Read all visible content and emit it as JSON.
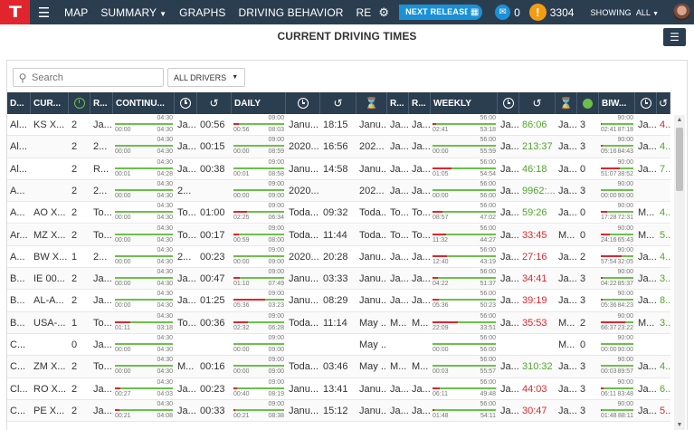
{
  "nav": {
    "logo": "T",
    "items": [
      {
        "label": "MAP"
      },
      {
        "label": "SUMMARY",
        "dropdown": true
      },
      {
        "label": "GRAPHS"
      },
      {
        "label": "DRIVING BEHAVIOR"
      },
      {
        "label": "RE"
      }
    ],
    "next_release": "NEXT RELEASE",
    "message_count": "0",
    "alert_count": "3304",
    "showing_label": "SHOWING",
    "showing_value": "ALL"
  },
  "page": {
    "title": "CURRENT DRIVING TIMES"
  },
  "filters": {
    "search_placeholder": "Search",
    "drivers_select": "ALL DRIVERS"
  },
  "colors": {
    "nav_bg": "#2b3e50",
    "brand_red": "#e0262c",
    "accent_blue": "#1a91d8",
    "ok_green": "#4fa62a",
    "alert_red": "#e0262c"
  },
  "columns": [
    {
      "label": "D..."
    },
    {
      "label": "CUR..."
    },
    {
      "icon": "green-clock-icon"
    },
    {
      "label": "R..."
    },
    {
      "label": "CONTINU..."
    },
    {
      "icon": "clock-icon"
    },
    {
      "icon": "history-icon"
    },
    {
      "label": "DAILY"
    },
    {
      "icon": "clock-icon"
    },
    {
      "icon": "history-icon"
    },
    {
      "icon": "hourglass-icon"
    },
    {
      "label": "R..."
    },
    {
      "label": "R..."
    },
    {
      "label": "WEEKLY"
    },
    {
      "icon": "clock-icon"
    },
    {
      "icon": "history-icon"
    },
    {
      "icon": "hourglass-icon"
    },
    {
      "icon": "green-dot-icon"
    },
    {
      "label": "BIW..."
    },
    {
      "icon": "clock-icon"
    },
    {
      "icon": "history-icon"
    }
  ],
  "rows": [
    {
      "c": [
        "Al...",
        "KS X...",
        "2",
        "Ja...",
        "",
        "Ja...",
        "00:56",
        "",
        "Janu...",
        "18:15",
        "Janu...",
        "Ja...",
        "Ja...",
        "",
        "Ja...",
        "86:06",
        "Ja...",
        "3",
        "",
        "Ja...",
        "4..."
      ],
      "bars": {
        "cont": [
          "04:30",
          "00:00",
          "04:30",
          0
        ],
        "daily": [
          "09:00",
          "00:56",
          "08:03",
          0.1
        ],
        "weekly": [
          "56:00",
          "02:41",
          "53:18",
          0.05
        ],
        "biw": [
          "90:00",
          "02:41",
          "87:18",
          0.03
        ]
      },
      "tone": {
        "15": "green",
        "20": "red"
      }
    },
    {
      "c": [
        "Al...",
        "",
        "2",
        "2...",
        "",
        "Ja...",
        "00:15",
        "",
        "2020...",
        "16:56",
        "202...",
        "Ja...",
        "Ja...",
        "",
        "Ja...",
        "213:37",
        "Ja...",
        "3",
        "",
        "Ja...",
        "4..."
      ],
      "bars": {
        "cont": [
          "04:30",
          "00:00",
          "04:30",
          0
        ],
        "daily": [
          "09:00",
          "00:00",
          "08:59",
          0
        ],
        "weekly": [
          "56:00",
          "00:00",
          "55:59",
          0
        ],
        "biw": [
          "90:00",
          "05:16",
          "84:43",
          0.06
        ]
      },
      "tone": {
        "15": "green",
        "20": "green"
      }
    },
    {
      "c": [
        "Al...",
        "",
        "2",
        "R...",
        "",
        "Ja...",
        "00:38",
        "",
        "Janu...",
        "14:58",
        "Janu...",
        "Ja...",
        "Ja...",
        "",
        "Ja...",
        "46:18",
        "Ja...",
        "0",
        "",
        "Ja...",
        "7..."
      ],
      "bars": {
        "cont": [
          "04:30",
          "00:01",
          "04:28",
          0
        ],
        "daily": [
          "09:00",
          "00:01",
          "08:58",
          0
        ],
        "weekly": [
          "56:00",
          "01:05",
          "54:54",
          0.3
        ],
        "biw": [
          "90:00",
          "51:07",
          "38:52",
          0.57
        ]
      },
      "tone": {
        "15": "green",
        "20": "green"
      }
    },
    {
      "c": [
        "A...",
        "",
        "2",
        "2...",
        "",
        "2...",
        "",
        "",
        "2020...",
        "",
        "202...",
        "Ja...",
        "Ja...",
        "",
        "Ja...",
        "9962:...",
        "Ja...",
        "3",
        "",
        "",
        ""
      ],
      "bars": {
        "cont": [
          "04:30",
          "00:00",
          "04:30",
          0
        ],
        "daily": [
          "09:00",
          "00:00",
          "09:00",
          0
        ],
        "weekly": [
          "56:00",
          "00:00",
          "56:00",
          0
        ],
        "biw": [
          "90:00",
          "00:00",
          "90:00",
          0
        ]
      },
      "tone": {
        "15": "green"
      }
    },
    {
      "c": [
        "A...",
        "AO X...",
        "2",
        "To...",
        "",
        "To...",
        "01:00",
        "",
        "Toda...",
        "09:32",
        "Toda...",
        "To...",
        "To...",
        "",
        "Ja...",
        "59:26",
        "Ja...",
        "0",
        "",
        "M...",
        "4..."
      ],
      "bars": {
        "cont": [
          "04:30",
          "00:00",
          "04:30",
          0
        ],
        "daily": [
          "09:00",
          "02:25",
          "06:34",
          0.27
        ],
        "weekly": [
          "56:00",
          "08:57",
          "47:02",
          0.16
        ],
        "biw": [
          "90:00",
          "17:28",
          "72:31",
          0.19
        ]
      },
      "tone": {
        "15": "green",
        "20": "green"
      }
    },
    {
      "c": [
        "Ar...",
        "MZ X...",
        "2",
        "To...",
        "",
        "To...",
        "00:17",
        "",
        "Toda...",
        "11:44",
        "Toda...",
        "To...",
        "To...",
        "",
        "Ja...",
        "33:45",
        "M...",
        "0",
        "",
        "M...",
        "5..."
      ],
      "bars": {
        "cont": [
          "04:30",
          "00:00",
          "04:30",
          0
        ],
        "daily": [
          "09:00",
          "00:59",
          "08:00",
          0.11
        ],
        "weekly": [
          "56:00",
          "11:32",
          "44:27",
          0.21
        ],
        "biw": [
          "90:00",
          "24:16",
          "65:43",
          0.27
        ]
      },
      "tone": {
        "15": "red",
        "20": "green"
      }
    },
    {
      "c": [
        "A...",
        "BW X...",
        "1",
        "2...",
        "",
        "2...",
        "00:23",
        "",
        "2020...",
        "20:28",
        "Janu...",
        "Ja...",
        "Ja...",
        "",
        "Ja...",
        "27:16",
        "Ja...",
        "2",
        "",
        "Ja...",
        "4..."
      ],
      "bars": {
        "cont": [
          "04:30",
          "00:00",
          "04:30",
          0
        ],
        "daily": [
          "09:00",
          "00:00",
          "09:00",
          0
        ],
        "weekly": [
          "56:00",
          "12:40",
          "43:19",
          0.23
        ],
        "biw": [
          "90:00",
          "57:54",
          "32:05",
          0.64
        ]
      },
      "tone": {
        "15": "red",
        "20": "green"
      }
    },
    {
      "c": [
        "B...",
        "IE 00...",
        "2",
        "Ja...",
        "",
        "Ja...",
        "00:47",
        "",
        "Janu...",
        "03:33",
        "Janu...",
        "Ja...",
        "Ja...",
        "",
        "Ja...",
        "34:41",
        "Ja...",
        "3",
        "",
        "Ja...",
        "3..."
      ],
      "bars": {
        "cont": [
          "04:30",
          "00:00",
          "04:30",
          0
        ],
        "daily": [
          "09:00",
          "01:10",
          "07:49",
          0.13
        ],
        "weekly": [
          "56:00",
          "04:22",
          "51:37",
          0.08
        ],
        "biw": [
          "90:00",
          "04:22",
          "85:37",
          0.05
        ]
      },
      "tone": {
        "15": "red",
        "20": "green"
      }
    },
    {
      "c": [
        "B...",
        "AL-A...",
        "2",
        "Ja...",
        "",
        "Ja...",
        "01:25",
        "",
        "Janu...",
        "08:29",
        "Janu...",
        "Ja...",
        "Ja...",
        "",
        "Ja...",
        "39:19",
        "Ja...",
        "3",
        "",
        "Ja...",
        "8..."
      ],
      "bars": {
        "cont": [
          "04:30",
          "00:00",
          "04:30",
          0
        ],
        "daily": [
          "09:00",
          "05:36",
          "03:23",
          0.62
        ],
        "weekly": [
          "56:00",
          "05:36",
          "50:23",
          0.1
        ],
        "biw": [
          "90:00",
          "05:36",
          "84:23",
          0.06
        ]
      },
      "tone": {
        "15": "red",
        "20": "green"
      }
    },
    {
      "c": [
        "B...",
        "USA-...",
        "1",
        "To...",
        "",
        "To...",
        "00:36",
        "",
        "Toda...",
        "11:14",
        "May ...",
        "M...",
        "M...",
        "",
        "Ja...",
        "35:53",
        "M...",
        "2",
        "",
        "M...",
        "3..."
      ],
      "bars": {
        "cont": [
          "04:30",
          "01:11",
          "03:18",
          0.26
        ],
        "daily": [
          "09:00",
          "02:32",
          "06:28",
          0.28
        ],
        "weekly": [
          "56:00",
          "22:09",
          "33:51",
          0.4
        ],
        "biw": [
          "90:00",
          "66:37",
          "23:22",
          0.74
        ]
      },
      "tone": {
        "15": "red",
        "20": "green"
      }
    },
    {
      "c": [
        "C...",
        "",
        "0",
        "Ja...",
        "",
        "",
        "",
        "",
        "",
        "",
        "May ...",
        "",
        "",
        "",
        "",
        "",
        "M...",
        "0",
        "",
        "",
        ""
      ],
      "bars": {
        "cont": [
          "04:30",
          "00:00",
          "04:30",
          0
        ],
        "daily": [
          "09:00",
          "00:00",
          "09:00",
          0
        ],
        "weekly": [
          "56:00",
          "00:00",
          "56:00",
          0
        ],
        "biw": [
          "90:00",
          "00:00",
          "90:00",
          0
        ]
      },
      "tone": {}
    },
    {
      "c": [
        "C...",
        "ZM X...",
        "2",
        "To...",
        "",
        "M...",
        "00:16",
        "",
        "Toda...",
        "03:46",
        "May ...",
        "M...",
        "M...",
        "",
        "Ja...",
        "310:32",
        "Ja...",
        "3",
        "",
        "Ja...",
        "4..."
      ],
      "bars": {
        "cont": [
          "04:30",
          "00:00",
          "04:30",
          0
        ],
        "daily": [
          "09:00",
          "00:00",
          "09:00",
          0
        ],
        "weekly": [
          "56:00",
          "00:03",
          "55:57",
          0
        ],
        "biw": [
          "90:00",
          "00:03",
          "89:57",
          0
        ]
      },
      "tone": {
        "15": "green",
        "20": "green"
      }
    },
    {
      "c": [
        "Cl...",
        "RO X...",
        "2",
        "Ja...",
        "",
        "Ja...",
        "00:23",
        "",
        "Janu...",
        "13:41",
        "Janu...",
        "Ja...",
        "Ja...",
        "",
        "Ja...",
        "44:03",
        "Ja...",
        "3",
        "",
        "Ja...",
        "6..."
      ],
      "bars": {
        "cont": [
          "04:30",
          "00:27",
          "04:03",
          0.1
        ],
        "daily": [
          "09:00",
          "00:40",
          "08:19",
          0.07
        ],
        "weekly": [
          "56:00",
          "06:11",
          "49:48",
          0.11
        ],
        "biw": [
          "90:00",
          "06:11",
          "83:48",
          0.07
        ]
      },
      "tone": {
        "15": "red",
        "20": "green"
      }
    },
    {
      "c": [
        "C...",
        "PE X...",
        "2",
        "Ja...",
        "",
        "Ja...",
        "00:33",
        "",
        "Janu...",
        "15:12",
        "Janu...",
        "Ja...",
        "Ja...",
        "",
        "Ja...",
        "30:47",
        "Ja...",
        "3",
        "",
        "Ja...",
        "5..."
      ],
      "bars": {
        "cont": [
          "04:30",
          "00:21",
          "04:08",
          0.08
        ],
        "daily": [
          "09:00",
          "00:21",
          "08:38",
          0.04
        ],
        "weekly": [
          "56:00",
          "01:48",
          "54:11",
          0.03
        ],
        "biw": [
          "90:00",
          "01:48",
          "88:11",
          0.02
        ]
      },
      "tone": {
        "15": "red",
        "20": "red"
      }
    }
  ]
}
